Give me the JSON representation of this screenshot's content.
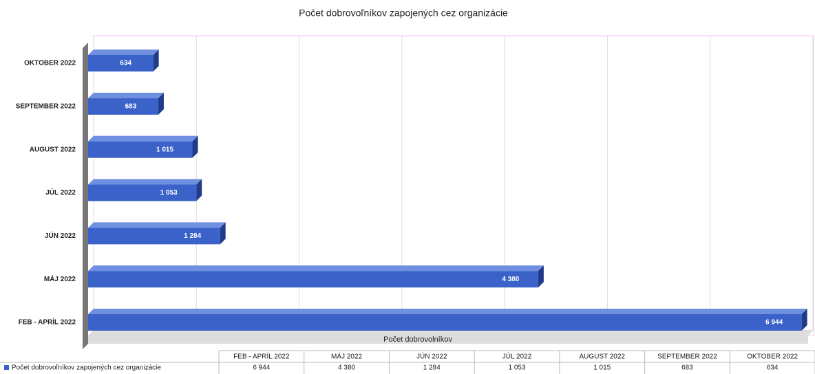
{
  "chart_data": {
    "type": "bar",
    "orientation": "horizontal",
    "title": "Počet dobrovoľníkov zapojených  cez organizácie",
    "x_axis_label": "Počet dobrovolníkov",
    "categories": [
      "FEB - APRÍL 2022",
      "MÁJ 2022",
      "JÚN 2022",
      "JÚL 2022",
      "AUGUST 2022",
      "SEPTEMBER 2022",
      "OKTOBER 2022"
    ],
    "series": [
      {
        "name": "Počet dobrovoľníkov zapojených  cez organizácie",
        "color": "#3a62c8",
        "values": [
          6944,
          4380,
          1284,
          1053,
          1015,
          683,
          634
        ],
        "value_labels": [
          "6 944",
          "4 380",
          "1 284",
          "1 053",
          "1 015",
          "683",
          "634"
        ]
      }
    ],
    "xlim": [
      0,
      7000
    ],
    "xticks": [
      0,
      1000,
      2000,
      3000,
      4000,
      5000,
      6000,
      7000
    ],
    "grid": true
  }
}
